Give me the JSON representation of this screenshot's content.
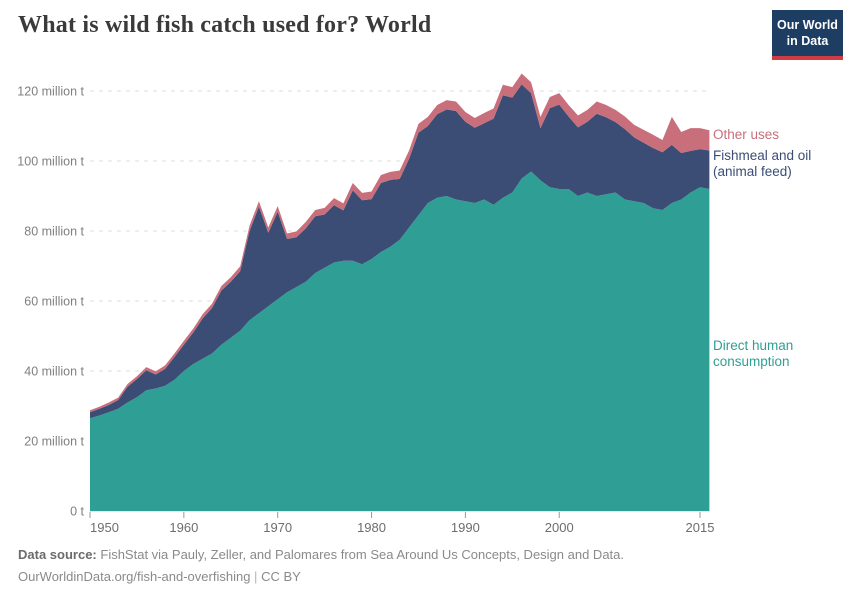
{
  "header": {
    "title": "What is wild fish catch used for? World"
  },
  "logo": {
    "line1": "Our World",
    "line2": "in Data",
    "bg_color": "#1d3d63",
    "bar_color": "#d13b42"
  },
  "chart_data": {
    "type": "area",
    "stacked": true,
    "title": "What is wild fish catch used for? World",
    "unit": "million t",
    "grid": "dashed-horizontal",
    "legend_position": "right-edge-labels",
    "xlim": [
      1950,
      2016
    ],
    "ylim": [
      0,
      125
    ],
    "x": [
      1950,
      1951,
      1952,
      1953,
      1954,
      1955,
      1956,
      1957,
      1958,
      1959,
      1960,
      1961,
      1962,
      1963,
      1964,
      1965,
      1966,
      1967,
      1968,
      1969,
      1970,
      1971,
      1972,
      1973,
      1974,
      1975,
      1976,
      1977,
      1978,
      1979,
      1980,
      1981,
      1982,
      1983,
      1984,
      1985,
      1986,
      1987,
      1988,
      1989,
      1990,
      1991,
      1992,
      1993,
      1994,
      1995,
      1996,
      1997,
      1998,
      1999,
      2000,
      2001,
      2002,
      2003,
      2004,
      2005,
      2006,
      2007,
      2008,
      2009,
      2010,
      2011,
      2012,
      2013,
      2014,
      2015,
      2016
    ],
    "series": [
      {
        "name": "Direct human consumption",
        "color": "#2f9e95",
        "values": [
          26.5,
          27.3,
          28.2,
          29.2,
          31.0,
          32.5,
          34.5,
          35.0,
          35.8,
          37.5,
          40.0,
          42.0,
          43.5,
          45.0,
          47.5,
          49.5,
          51.5,
          54.5,
          56.5,
          58.5,
          60.5,
          62.5,
          64.0,
          65.5,
          68.0,
          69.5,
          71.0,
          71.5,
          71.5,
          70.5,
          72.0,
          74.0,
          75.5,
          77.5,
          81.0,
          84.5,
          88.0,
          89.5,
          90.0,
          89.0,
          88.5,
          88.0,
          89.0,
          87.5,
          89.5,
          91.0,
          95.0,
          97.0,
          94.5,
          92.5,
          92.0,
          92.0,
          90.0,
          91.0,
          90.0,
          90.5,
          91.0,
          89.0,
          88.5,
          88.0,
          86.5,
          86.0,
          88.0,
          89.0,
          91.0,
          92.5,
          92.0
        ]
      },
      {
        "name": "Fishmeal and oil (animal feed)",
        "color": "#3b4d74",
        "values": [
          1.7,
          1.9,
          2.1,
          2.5,
          4.5,
          5.2,
          5.7,
          4.0,
          4.8,
          6.5,
          7.5,
          9.0,
          11.5,
          13.0,
          15.5,
          16.0,
          17.0,
          25.5,
          30.5,
          21.0,
          25.0,
          15.2,
          14.2,
          15.3,
          16.2,
          15.2,
          16.4,
          14.4,
          20.1,
          18.3,
          17.1,
          19.7,
          19.1,
          17.4,
          19.6,
          23.6,
          22.0,
          23.9,
          24.7,
          25.3,
          22.7,
          21.5,
          21.8,
          24.6,
          29.3,
          27.1,
          26.9,
          22.4,
          14.9,
          22.6,
          24.1,
          20.7,
          19.6,
          20.2,
          23.5,
          22.0,
          20.1,
          20.1,
          18.2,
          17.2,
          17.2,
          16.5,
          16.6,
          13.3,
          11.9,
          10.9,
          11.0
        ]
      },
      {
        "name": "Other uses",
        "color": "#c96e7b",
        "values": [
          0.6,
          0.6,
          0.7,
          0.7,
          0.8,
          0.8,
          0.9,
          0.9,
          1.0,
          1.0,
          1.1,
          1.1,
          1.2,
          1.2,
          1.3,
          1.3,
          1.4,
          1.5,
          1.5,
          1.5,
          1.6,
          1.6,
          1.7,
          1.8,
          1.8,
          1.9,
          2.0,
          2.0,
          2.1,
          2.1,
          2.2,
          2.3,
          2.3,
          2.4,
          2.4,
          2.5,
          2.6,
          2.6,
          2.7,
          2.7,
          2.8,
          2.8,
          2.9,
          2.9,
          3.0,
          3.0,
          3.1,
          3.1,
          3.2,
          3.2,
          3.3,
          3.3,
          3.4,
          3.4,
          3.5,
          3.5,
          3.5,
          3.6,
          3.6,
          3.7,
          3.8,
          3.5,
          8.0,
          6.0,
          6.5,
          6.0,
          5.8
        ]
      }
    ],
    "y_ticks": [
      {
        "value": 0,
        "label": "0 t"
      },
      {
        "value": 20,
        "label": "20 million t"
      },
      {
        "value": 40,
        "label": "40 million t"
      },
      {
        "value": 60,
        "label": "60 million t"
      },
      {
        "value": 80,
        "label": "80 million t"
      },
      {
        "value": 100,
        "label": "100 million t"
      },
      {
        "value": 120,
        "label": "120 million t"
      }
    ],
    "x_ticks": [
      {
        "year": 1950,
        "label": "1950"
      },
      {
        "year": 1960,
        "label": "1960"
      },
      {
        "year": 1970,
        "label": "1970"
      },
      {
        "year": 1980,
        "label": "1980"
      },
      {
        "year": 1990,
        "label": "1990"
      },
      {
        "year": 2000,
        "label": "2000"
      },
      {
        "year": 2015,
        "label": "2015"
      }
    ]
  },
  "footer": {
    "source_label": "Data source:",
    "source_text": "FishStat via Pauly, Zeller, and Palomares from Sea Around Us Concepts, Design and Data.",
    "link": "OurWorldinData.org/fish-and-overfishing",
    "separator": "|",
    "license": "CC BY"
  }
}
